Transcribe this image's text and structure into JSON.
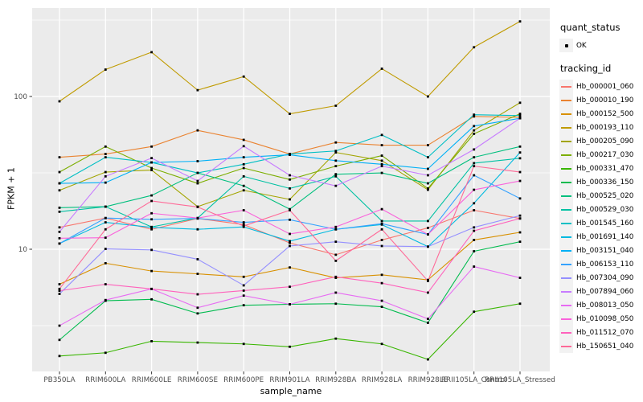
{
  "figure": {
    "panel_bg": "#EBEBEB",
    "grid_color": "#FFFFFF",
    "axis_text_color": "#4D4D4D",
    "tick_color": "#333333",
    "point_color": "#000000"
  },
  "legend": {
    "quant_title": "quant_status",
    "quant_items": [
      {
        "label": "OK"
      }
    ],
    "tracking_title": "tracking_id"
  },
  "chart_data": {
    "type": "line",
    "title": "",
    "xlabel": "sample_name",
    "ylabel": "FPKM + 1",
    "y_scale": "log10",
    "y_ticks": [
      10,
      100
    ],
    "y_minor_ticks": [
      3.1623,
      31.623,
      316.23
    ],
    "ylim_px_note": "log axis, decade = 190px",
    "grid": true,
    "legend_position": "right",
    "categories": [
      "PB350LA",
      "RRIM600LA",
      "RRIM600LE",
      "RRIM600SE",
      "RRIM600PE",
      "RRIM901LA",
      "RRIM928BA",
      "RRIM928LA",
      "RRIM928LE",
      "RRII105LA_Control",
      "RRII105LA_Stressed"
    ],
    "series": [
      {
        "name": "Hb_000001_060",
        "color": "#F8766D",
        "quant_status": "OK",
        "values": [
          13.9,
          16,
          13.5,
          15.9,
          14.5,
          11,
          9.2,
          11.5,
          13.8,
          18,
          15.9
        ]
      },
      {
        "name": "Hb_000010_190",
        "color": "#EA8331",
        "quant_status": "OK",
        "values": [
          40,
          42,
          47,
          60,
          52,
          42,
          50,
          48,
          48,
          74,
          73
        ]
      },
      {
        "name": "Hb_000152_500",
        "color": "#D89000",
        "quant_status": "OK",
        "values": [
          5.9,
          8.1,
          7.2,
          6.9,
          6.6,
          7.6,
          6.5,
          6.8,
          6.3,
          11.5,
          12.9
        ]
      },
      {
        "name": "Hb_000193_110",
        "color": "#C09B00",
        "quant_status": "OK",
        "values": [
          93,
          150,
          195,
          110,
          135,
          77,
          87,
          152,
          100,
          210,
          310
        ]
      },
      {
        "name": "Hb_000205_090",
        "color": "#A3A500",
        "quant_status": "OK",
        "values": [
          24.3,
          32,
          33,
          19,
          24.3,
          21.2,
          43,
          38,
          24.5,
          60,
          91
        ]
      },
      {
        "name": "Hb_000217_030",
        "color": "#7CAE00",
        "quant_status": "OK",
        "values": [
          32,
          47,
          34,
          27,
          34,
          28.6,
          35,
          41,
          25,
          57,
          77
        ]
      },
      {
        "name": "Hb_000331_470",
        "color": "#39B600",
        "quant_status": "OK",
        "values": [
          2.0,
          2.1,
          2.5,
          2.45,
          2.4,
          2.3,
          2.6,
          2.4,
          1.9,
          3.9,
          4.4
        ]
      },
      {
        "name": "Hb_000336_150",
        "color": "#00BB4E",
        "quant_status": "OK",
        "values": [
          2.55,
          4.6,
          4.7,
          3.8,
          4.3,
          4.36,
          4.4,
          4.2,
          3.3,
          9.7,
          11.2
        ]
      },
      {
        "name": "Hb_000525_020",
        "color": "#00BF7D",
        "quant_status": "OK",
        "values": [
          18.7,
          19,
          22.5,
          31.6,
          26,
          18.3,
          31,
          31.6,
          27,
          40,
          47
        ]
      },
      {
        "name": "Hb_000529_030",
        "color": "#00C1A3",
        "quant_status": "OK",
        "values": [
          17.6,
          19,
          14,
          16,
          30,
          25,
          30,
          15.3,
          15.3,
          36.6,
          39.4
        ]
      },
      {
        "name": "Hb_001545_160",
        "color": "#00BFC4",
        "quant_status": "OK",
        "values": [
          27,
          40,
          37,
          31.6,
          36,
          42,
          44,
          56,
          40,
          76,
          75
        ]
      },
      {
        "name": "Hb_001691_140",
        "color": "#00BAE0",
        "quant_status": "OK",
        "values": [
          10.9,
          15,
          13.9,
          13.5,
          14,
          11.3,
          13.5,
          14.5,
          10.4,
          20,
          43
        ]
      },
      {
        "name": "Hb_003151_040",
        "color": "#00B0F6",
        "quant_status": "OK",
        "values": [
          27,
          27.3,
          37,
          37.7,
          40,
          41.5,
          38,
          36,
          33.6,
          64,
          72
        ]
      },
      {
        "name": "Hb_006153_110",
        "color": "#35A2FF",
        "quant_status": "OK",
        "values": [
          10.9,
          16,
          15.7,
          15.9,
          15,
          15.6,
          13.5,
          14.7,
          12.5,
          30.5,
          21.5
        ]
      },
      {
        "name": "Hb_007304_090",
        "color": "#9590FF",
        "quant_status": "OK",
        "values": [
          5.1,
          10.05,
          9.9,
          8.6,
          5.8,
          10.5,
          11.2,
          10.5,
          10.4,
          13.9,
          16.6
        ]
      },
      {
        "name": "Hb_007894_060",
        "color": "#C77CFF",
        "quant_status": "OK",
        "values": [
          13,
          30,
          39.5,
          28,
          47.3,
          30.5,
          26,
          35,
          30.5,
          45,
          72
        ]
      },
      {
        "name": "Hb_008013_050",
        "color": "#E76BF3",
        "quant_status": "OK",
        "values": [
          3.16,
          4.65,
          5.5,
          4.14,
          4.97,
          4.36,
          5.2,
          4.6,
          3.5,
          7.7,
          6.5
        ]
      },
      {
        "name": "Hb_010098_050",
        "color": "#FA62DB",
        "quant_status": "OK",
        "values": [
          11.8,
          11.9,
          17.2,
          16,
          18,
          12.6,
          14,
          18.3,
          12.5,
          24.5,
          28
        ]
      },
      {
        "name": "Hb_011512_070",
        "color": "#FF62BC",
        "quant_status": "OK",
        "values": [
          5.35,
          5.9,
          5.5,
          5.07,
          5.36,
          5.68,
          6.6,
          6.0,
          5.2,
          13.2,
          15.9
        ]
      },
      {
        "name": "Hb_150651_040",
        "color": "#FF6A98",
        "quant_status": "OK",
        "values": [
          5.5,
          13.5,
          20.7,
          18.9,
          14.2,
          18,
          8.4,
          13.5,
          6.2,
          35,
          32
        ]
      }
    ]
  }
}
